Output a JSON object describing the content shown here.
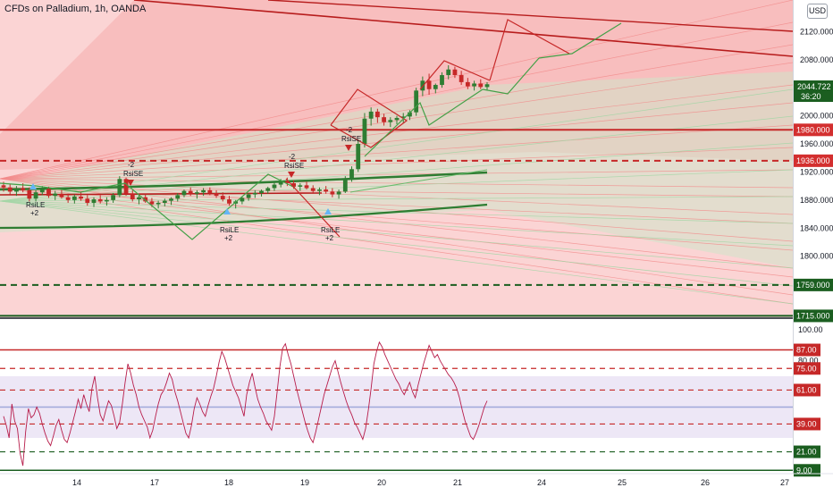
{
  "header": {
    "symbol_title": "CFDs on Palladium, 1h, OANDA",
    "currency": "USD"
  },
  "colors": {
    "bull": "#2e7d32",
    "bear": "#c62828",
    "fan_red": "#f28b8b",
    "fan_green": "#a5d6a7",
    "rsi_line": "#b71c4a",
    "rsi_band": "#ede7f6",
    "price_label_bg": "#d32f2f",
    "current_label_bg": "#1b5e20"
  },
  "chart_data": [
    {
      "type": "candlestick",
      "title": "CFDs on Palladium, 1h, OANDA",
      "x_tick_labels": [
        "14",
        "17",
        "18",
        "19",
        "20",
        "21",
        "24",
        "25",
        "26",
        "27"
      ],
      "y_tick_labels": [
        "2120.000",
        "2080.000",
        "2000.000",
        "1960.000",
        "1920.000",
        "1880.000",
        "1840.000",
        "1800.000"
      ],
      "ylim": [
        1713,
        2165
      ],
      "current_price": {
        "value": "2044.722",
        "countdown": "36:20"
      },
      "horizontal_levels": [
        {
          "value": 1980,
          "label": "1980.000",
          "style": "solid",
          "color": "#c62828"
        },
        {
          "value": 1936,
          "label": "1936.000",
          "style": "dashed",
          "color": "#c62828"
        },
        {
          "value": 1759,
          "label": "1759.000",
          "style": "dashed",
          "color": "#1b5e20"
        },
        {
          "value": 1715,
          "label": "1715.000",
          "style": "solid",
          "color": "#1b5e20"
        }
      ],
      "signals": [
        "RsiLE",
        "RsiSE",
        "RsiSE",
        "RsiLE",
        "RsiLE",
        "RsiSE"
      ],
      "signal_counts": [
        "+2",
        "-2",
        "-2",
        "+2",
        "+2",
        "-2"
      ],
      "ohlc": [
        [
          1901,
          1906,
          1892,
          1898
        ],
        [
          1898,
          1903,
          1888,
          1892
        ],
        [
          1892,
          1900,
          1886,
          1897
        ],
        [
          1897,
          1904,
          1891,
          1894
        ],
        [
          1894,
          1898,
          1878,
          1882
        ],
        [
          1882,
          1894,
          1878,
          1891
        ],
        [
          1891,
          1900,
          1887,
          1896
        ],
        [
          1896,
          1899,
          1883,
          1886
        ],
        [
          1886,
          1893,
          1880,
          1889
        ],
        [
          1889,
          1895,
          1882,
          1884
        ],
        [
          1884,
          1889,
          1876,
          1880
        ],
        [
          1880,
          1888,
          1875,
          1885
        ],
        [
          1885,
          1891,
          1879,
          1882
        ],
        [
          1882,
          1887,
          1872,
          1876
        ],
        [
          1876,
          1884,
          1870,
          1881
        ],
        [
          1881,
          1887,
          1875,
          1878
        ],
        [
          1878,
          1884,
          1872,
          1880
        ],
        [
          1880,
          1890,
          1876,
          1887
        ],
        [
          1887,
          1914,
          1884,
          1910
        ],
        [
          1910,
          1912,
          1886,
          1889
        ],
        [
          1889,
          1894,
          1878,
          1881
        ],
        [
          1881,
          1887,
          1874,
          1884
        ],
        [
          1884,
          1889,
          1876,
          1878
        ],
        [
          1878,
          1883,
          1870,
          1874
        ],
        [
          1874,
          1879,
          1868,
          1876
        ],
        [
          1876,
          1882,
          1871,
          1879
        ],
        [
          1879,
          1884,
          1873,
          1882
        ],
        [
          1882,
          1890,
          1878,
          1887
        ],
        [
          1887,
          1895,
          1884,
          1893
        ],
        [
          1893,
          1898,
          1886,
          1889
        ],
        [
          1889,
          1894,
          1882,
          1891
        ],
        [
          1891,
          1897,
          1886,
          1894
        ],
        [
          1894,
          1898,
          1887,
          1890
        ],
        [
          1890,
          1894,
          1883,
          1886
        ],
        [
          1886,
          1891,
          1878,
          1881
        ],
        [
          1881,
          1886,
          1872,
          1875
        ],
        [
          1875,
          1880,
          1868,
          1878
        ],
        [
          1878,
          1885,
          1874,
          1883
        ],
        [
          1883,
          1890,
          1879,
          1888
        ],
        [
          1888,
          1894,
          1883,
          1890
        ],
        [
          1890,
          1895,
          1885,
          1893
        ],
        [
          1893,
          1899,
          1889,
          1897
        ],
        [
          1897,
          1905,
          1893,
          1902
        ],
        [
          1902,
          1910,
          1898,
          1907
        ],
        [
          1907,
          1912,
          1900,
          1904
        ],
        [
          1904,
          1908,
          1896,
          1899
        ],
        [
          1899,
          1904,
          1893,
          1901
        ],
        [
          1901,
          1906,
          1895,
          1897
        ],
        [
          1897,
          1901,
          1889,
          1893
        ],
        [
          1893,
          1898,
          1887,
          1895
        ],
        [
          1895,
          1900,
          1889,
          1892
        ],
        [
          1892,
          1897,
          1884,
          1888
        ],
        [
          1888,
          1895,
          1882,
          1892
        ],
        [
          1892,
          1914,
          1890,
          1910
        ],
        [
          1910,
          1928,
          1906,
          1924
        ],
        [
          1924,
          1966,
          1920,
          1960
        ],
        [
          1960,
          2004,
          1955,
          1996
        ],
        [
          1996,
          2012,
          1986,
          2006
        ],
        [
          2006,
          2010,
          1990,
          1998
        ],
        [
          1998,
          2003,
          1986,
          1991
        ],
        [
          1991,
          1998,
          1984,
          1994
        ],
        [
          1994,
          2000,
          1988,
          1997
        ],
        [
          1997,
          2004,
          1990,
          1999
        ],
        [
          1999,
          2008,
          1994,
          2005
        ],
        [
          2005,
          2040,
          2000,
          2036
        ],
        [
          2036,
          2056,
          2028,
          2050
        ],
        [
          2050,
          2060,
          2030,
          2038
        ],
        [
          2038,
          2046,
          2032,
          2044
        ],
        [
          2044,
          2062,
          2040,
          2058
        ],
        [
          2058,
          2072,
          2052,
          2066
        ],
        [
          2066,
          2070,
          2054,
          2058
        ],
        [
          2058,
          2064,
          2044,
          2048
        ],
        [
          2048,
          2054,
          2038,
          2042
        ],
        [
          2042,
          2050,
          2036,
          2046
        ],
        [
          2046,
          2052,
          2038,
          2041
        ],
        [
          2041,
          2048,
          2036,
          2045
        ]
      ]
    },
    {
      "type": "line",
      "title": "",
      "ylim": [
        8,
        96
      ],
      "y_tick_labels": [
        "100.00",
        "80.00"
      ],
      "levels": [
        {
          "value": 87,
          "label": "87.00",
          "style": "solid",
          "color": "#c62828"
        },
        {
          "value": 75,
          "label": "75.00",
          "style": "dashed",
          "color": "#c62828"
        },
        {
          "value": 61,
          "label": "61.00",
          "style": "dashed",
          "color": "#c62828"
        },
        {
          "value": 50,
          "label": "",
          "style": "solid",
          "color": "#9fa8da"
        },
        {
          "value": 39,
          "label": "39.00",
          "style": "dashed",
          "color": "#c62828"
        },
        {
          "value": 21,
          "label": "21.00",
          "style": "dashed",
          "color": "#1b5e20"
        },
        {
          "value": 9,
          "label": "9.00",
          "style": "solid",
          "color": "#1b5e20"
        }
      ],
      "band": [
        30,
        70
      ],
      "values": [
        44,
        38,
        30,
        52,
        41,
        36,
        20,
        12,
        34,
        49,
        43,
        45,
        50,
        46,
        39,
        33,
        28,
        25,
        31,
        38,
        42,
        35,
        29,
        27,
        33,
        40,
        47,
        55,
        49,
        58,
        52,
        47,
        62,
        70,
        56,
        45,
        41,
        48,
        54,
        51,
        44,
        36,
        40,
        52,
        66,
        78,
        72,
        64,
        58,
        50,
        45,
        41,
        37,
        30,
        35,
        44,
        52,
        58,
        61,
        66,
        72,
        68,
        60,
        54,
        47,
        40,
        33,
        30,
        38,
        49,
        56,
        52,
        47,
        44,
        51,
        57,
        62,
        70,
        79,
        86,
        82,
        76,
        70,
        64,
        60,
        56,
        50,
        44,
        58,
        66,
        72,
        63,
        55,
        50,
        46,
        41,
        38,
        35,
        44,
        60,
        76,
        88,
        91,
        84,
        78,
        70,
        62,
        55,
        48,
        41,
        35,
        30,
        27,
        34,
        42,
        50,
        58,
        64,
        70,
        76,
        80,
        73,
        66,
        60,
        54,
        49,
        45,
        40,
        37,
        33,
        29,
        36,
        48,
        62,
        78,
        86,
        92,
        89,
        84,
        80,
        76,
        72,
        68,
        65,
        61,
        58,
        62,
        66,
        60,
        56,
        64,
        71,
        78,
        84,
        90,
        86,
        82,
        84,
        80,
        77,
        74,
        71,
        69,
        66,
        62,
        56,
        48,
        41,
        36,
        31,
        29,
        33,
        38,
        44,
        50,
        54
      ]
    }
  ]
}
